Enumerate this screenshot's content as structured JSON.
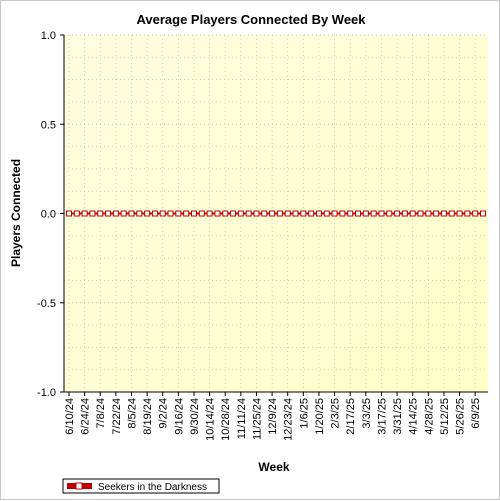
{
  "chart_data": {
    "type": "line",
    "title": "Average Players Connected By Week",
    "xlabel": "Week",
    "ylabel": "Players Connected",
    "ylim": [
      -1.0,
      1.0
    ],
    "yticks": [
      "1.0",
      "0.5",
      "0.0",
      "-0.5",
      "-1.0"
    ],
    "ytick_values": [
      1.0,
      0.5,
      0.0,
      -0.5,
      -1.0
    ],
    "x_tick_labels": [
      "6/10/24",
      "6/24/24",
      "7/8/24",
      "7/22/24",
      "8/5/24",
      "8/19/24",
      "9/2/24",
      "9/16/24",
      "9/30/24",
      "10/14/24",
      "10/28/24",
      "11/11/24",
      "11/25/24",
      "12/9/24",
      "12/23/24",
      "1/6/25",
      "1/20/25",
      "2/3/25",
      "2/17/25",
      "3/3/25",
      "3/17/25",
      "3/31/25",
      "4/14/25",
      "4/28/25",
      "5/12/25",
      "5/26/25",
      "6/9/25"
    ],
    "grid": true,
    "legend_position": "bottom-left",
    "background_gradient": [
      "#fdfde0",
      "#ffffc8"
    ],
    "series": [
      {
        "name": "Seekers in the Darkness",
        "color": "#c00000",
        "marker": "square",
        "values": [
          0,
          0,
          0,
          0,
          0,
          0,
          0,
          0,
          0,
          0,
          0,
          0,
          0,
          0,
          0,
          0,
          0,
          0,
          0,
          0,
          0,
          0,
          0,
          0,
          0,
          0,
          0,
          0,
          0,
          0,
          0,
          0,
          0,
          0,
          0,
          0,
          0,
          0,
          0,
          0,
          0,
          0,
          0,
          0,
          0,
          0,
          0,
          0,
          0,
          0,
          0,
          0,
          0,
          0
        ]
      }
    ]
  }
}
